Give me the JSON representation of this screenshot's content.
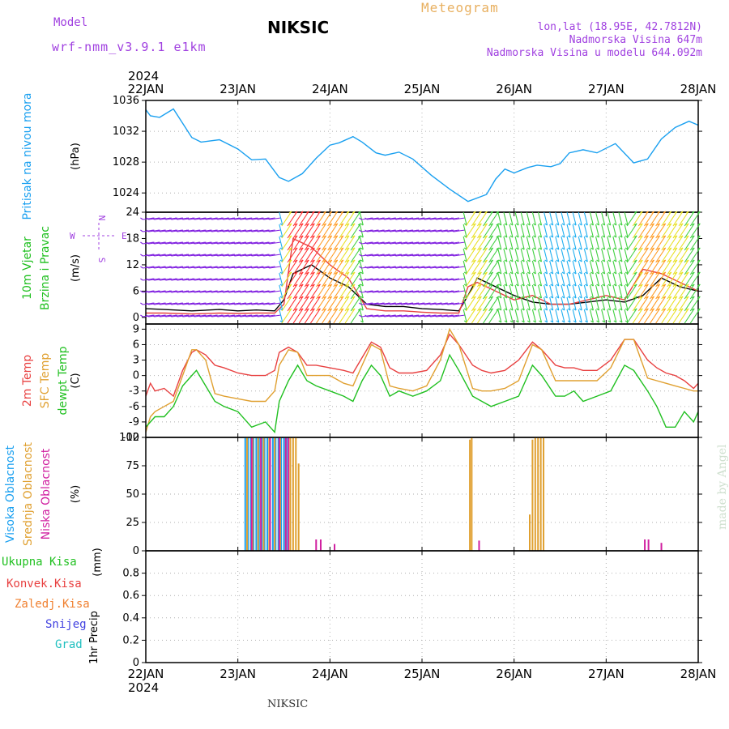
{
  "header": {
    "model_label": "Model",
    "model_name": "wrf-nmm_v3.9.1 e1km",
    "site_title": "NIKSIC",
    "meteogram_title": "Meteogram",
    "lonlat": "lon,lat (18.95E, 42.7812N)",
    "altitude": "Nadmorska Visina 647m",
    "altitude_model": "Nadmorska Visina u modelu 644.092m"
  },
  "footer": {
    "station": "NIKSIC",
    "watermark": "made by Angel"
  },
  "colors": {
    "pressure": "#1aa0f0",
    "temp2m": "#e84040",
    "sfc_temp": "#e0a030",
    "dewpoint": "#20c020",
    "high_cloud": "#1aa0f0",
    "mid_cloud": "#e0a030",
    "low_cloud": "#d020a0",
    "total_precip": "#20c020",
    "conv_precip": "#e84040",
    "frz_precip": "#f08030",
    "snow": "#4040e0",
    "hail": "#20c0c0",
    "wind_label": "#20c020",
    "compass": "#a040e0"
  },
  "chart_data": [
    {
      "type": "line",
      "panel": "pressure",
      "ylabel_lines": [
        "Pritisak na nivou mora"
      ],
      "unit": "(hPa)",
      "ylim": [
        1021.5,
        1036
      ],
      "yticks": [
        1024,
        1028,
        1032,
        1036
      ],
      "grid": true,
      "series": [
        {
          "name": "Pritisak na nivou mora",
          "x": [
            0,
            0.05,
            0.15,
            0.3,
            0.5,
            0.6,
            0.8,
            1.0,
            1.15,
            1.3,
            1.45,
            1.55,
            1.7,
            1.85,
            2.0,
            2.1,
            2.25,
            2.35,
            2.5,
            2.6,
            2.75,
            2.9,
            3.1,
            3.3,
            3.5,
            3.7,
            3.8,
            3.9,
            4.0,
            4.15,
            4.25,
            4.4,
            4.5,
            4.6,
            4.75,
            4.9,
            5.1,
            5.3,
            5.45,
            5.6,
            5.75,
            5.9,
            6.0
          ],
          "y": [
            1034.8,
            1034,
            1033.8,
            1034.9,
            1031.2,
            1030.6,
            1030.9,
            1029.7,
            1028.3,
            1028.4,
            1026,
            1025.5,
            1026.5,
            1028.5,
            1030.2,
            1030.5,
            1031.3,
            1030.6,
            1029.2,
            1028.9,
            1029.3,
            1028.4,
            1026.3,
            1024.5,
            1022.9,
            1023.8,
            1025.8,
            1027.1,
            1026.6,
            1027.3,
            1027.6,
            1027.4,
            1027.8,
            1029.2,
            1029.6,
            1029.2,
            1030.4,
            1027.9,
            1028.4,
            1031,
            1032.5,
            1033.3,
            1032.8
          ]
        }
      ]
    },
    {
      "type": "line",
      "panel": "wind",
      "ylabel_lines": [
        "10m Vjetar",
        "Brzina i Pravac"
      ],
      "unit": "(m/s)",
      "compass": {
        "n": "N",
        "s": "S",
        "w": "W",
        "e": "E"
      },
      "ylim": [
        -1.5,
        24
      ],
      "yticks": [
        0,
        6,
        12,
        18,
        24
      ],
      "grid": false,
      "series": [
        {
          "name": "wind speed",
          "x": [
            0,
            0.2,
            0.5,
            0.8,
            1.0,
            1.2,
            1.4,
            1.5,
            1.6,
            1.8,
            2.0,
            2.2,
            2.4,
            2.6,
            2.8,
            3.0,
            3.2,
            3.4,
            3.5,
            3.6,
            3.8,
            4.0,
            4.2,
            4.4,
            4.6,
            4.8,
            5.0,
            5.2,
            5.4,
            5.6,
            5.8,
            6.0
          ],
          "y": [
            2,
            1.8,
            1.5,
            1.8,
            1.5,
            1.7,
            1.5,
            4,
            10,
            12,
            9,
            7,
            3,
            2.5,
            2.5,
            2,
            1.8,
            1.5,
            5,
            9,
            7,
            5,
            3.5,
            3,
            3,
            3.5,
            4,
            3.5,
            5,
            9,
            7,
            6
          ]
        },
        {
          "name": "wind gust",
          "x": [
            0,
            0.2,
            0.5,
            0.8,
            1.0,
            1.2,
            1.4,
            1.5,
            1.6,
            1.8,
            2.0,
            2.2,
            2.4,
            2.6,
            2.8,
            3.0,
            3.2,
            3.4,
            3.5,
            3.6,
            3.8,
            4.0,
            4.2,
            4.4,
            4.6,
            4.8,
            5.0,
            5.2,
            5.4,
            5.6,
            5.8,
            6.0
          ],
          "y": [
            1,
            1,
            0.8,
            1,
            0.9,
            1,
            1,
            3,
            18,
            16,
            12,
            9,
            2,
            1.5,
            1.5,
            1.2,
            1,
            1,
            7,
            8,
            6,
            4,
            5,
            3,
            3,
            4,
            5,
            4,
            11,
            10,
            8,
            6
          ]
        }
      ]
    },
    {
      "type": "line",
      "panel": "temperature",
      "ylabel_lines": [
        "2m Temp",
        "SFC Temp",
        "dewpt Temp"
      ],
      "unit": "(C)",
      "ylim": [
        -12,
        10
      ],
      "yticks": [
        -12,
        -9,
        -6,
        -3,
        0,
        3,
        6,
        9
      ],
      "grid": true,
      "series": [
        {
          "name": "2m Temp",
          "x": [
            0,
            0.05,
            0.1,
            0.2,
            0.3,
            0.4,
            0.5,
            0.55,
            0.65,
            0.75,
            0.85,
            1.0,
            1.15,
            1.3,
            1.4,
            1.45,
            1.55,
            1.65,
            1.75,
            1.85,
            2.0,
            2.15,
            2.25,
            2.35,
            2.45,
            2.55,
            2.65,
            2.75,
            2.9,
            3.05,
            3.2,
            3.3,
            3.4,
            3.55,
            3.65,
            3.75,
            3.9,
            4.05,
            4.2,
            4.3,
            4.45,
            4.55,
            4.65,
            4.75,
            4.9,
            5.05,
            5.2,
            5.3,
            5.45,
            5.55,
            5.65,
            5.75,
            5.85,
            5.95,
            6.0
          ],
          "y": [
            -4,
            -1.5,
            -3,
            -2.5,
            -4,
            1,
            4.5,
            5,
            4,
            2,
            1.5,
            0.5,
            0,
            0,
            1,
            4.5,
            5.5,
            4.5,
            2,
            2,
            1.5,
            1,
            0.5,
            3.5,
            6.5,
            5.5,
            1.5,
            0.5,
            0.5,
            1,
            4,
            8,
            6,
            2,
            1,
            0.5,
            1,
            3,
            6.5,
            5,
            2,
            1.5,
            1.5,
            1,
            1,
            3,
            7,
            7,
            3,
            1.5,
            0.5,
            0,
            -1,
            -2.5,
            -1.5
          ]
        },
        {
          "name": "SFC Temp",
          "x": [
            0,
            0.05,
            0.1,
            0.2,
            0.3,
            0.4,
            0.5,
            0.55,
            0.65,
            0.75,
            0.85,
            1.0,
            1.15,
            1.3,
            1.4,
            1.45,
            1.55,
            1.65,
            1.75,
            1.85,
            2.0,
            2.15,
            2.25,
            2.35,
            2.45,
            2.55,
            2.65,
            2.75,
            2.9,
            3.05,
            3.2,
            3.3,
            3.4,
            3.55,
            3.65,
            3.75,
            3.9,
            4.05,
            4.2,
            4.3,
            4.45,
            4.55,
            4.65,
            4.75,
            4.9,
            5.05,
            5.2,
            5.3,
            5.45,
            5.55,
            5.65,
            5.75,
            5.85,
            5.95,
            6.0
          ],
          "y": [
            -11,
            -8,
            -7,
            -6,
            -5,
            0,
            5,
            5,
            3,
            -3.5,
            -4,
            -4.5,
            -5,
            -5,
            -3,
            2,
            5,
            4.5,
            0,
            0,
            0,
            -1.5,
            -2,
            2,
            6,
            5,
            -2,
            -2.5,
            -3,
            -2,
            3,
            9,
            6,
            -2.5,
            -3,
            -3,
            -2.5,
            -1,
            6,
            5,
            -1,
            -1,
            -1,
            -1,
            -1,
            1.5,
            7,
            7,
            -0.5,
            -1,
            -1.5,
            -2,
            -2.5,
            -3,
            -3
          ]
        },
        {
          "name": "dewpt Temp",
          "x": [
            0,
            0.05,
            0.1,
            0.2,
            0.3,
            0.4,
            0.5,
            0.55,
            0.65,
            0.75,
            0.85,
            1.0,
            1.15,
            1.3,
            1.4,
            1.45,
            1.55,
            1.65,
            1.75,
            1.85,
            2.0,
            2.15,
            2.25,
            2.35,
            2.45,
            2.55,
            2.65,
            2.75,
            2.9,
            3.05,
            3.2,
            3.3,
            3.4,
            3.55,
            3.65,
            3.75,
            3.9,
            4.05,
            4.2,
            4.3,
            4.45,
            4.55,
            4.65,
            4.75,
            4.9,
            5.05,
            5.2,
            5.3,
            5.45,
            5.55,
            5.65,
            5.75,
            5.85,
            5.95,
            6.0
          ],
          "y": [
            -10,
            -9,
            -8,
            -8,
            -6,
            -2,
            0,
            1,
            -2,
            -5,
            -6,
            -7,
            -10,
            -9,
            -11,
            -5,
            -1,
            2,
            -1,
            -2,
            -3,
            -4,
            -5,
            -1,
            2,
            0,
            -4,
            -3,
            -4,
            -3,
            -1,
            4,
            1,
            -4,
            -5,
            -6,
            -5,
            -4,
            2,
            0,
            -4,
            -4,
            -3,
            -5,
            -4,
            -3,
            2,
            1,
            -3,
            -6,
            -10,
            -10,
            -7,
            -9,
            -7
          ]
        }
      ]
    },
    {
      "type": "bar",
      "panel": "cloud",
      "ylabel_lines": [
        "Visoka Oblacnost",
        "Srednja Oblacnost",
        "Niska Oblacnost"
      ],
      "unit": "(%)",
      "ylim": [
        0,
        100
      ],
      "yticks": [
        0,
        25,
        50,
        75,
        100
      ],
      "grid": true,
      "series": [
        {
          "name": "Visoka Oblacnost",
          "x": [
            1.08,
            1.11,
            1.14,
            1.17,
            1.2,
            1.23,
            1.26,
            1.29,
            1.32,
            1.35,
            1.38,
            1.41,
            1.44,
            1.47,
            1.5,
            1.53
          ],
          "values": [
            100,
            100,
            100,
            100,
            100,
            100,
            100,
            100,
            100,
            100,
            100,
            100,
            100,
            100,
            100,
            100
          ]
        },
        {
          "name": "Srednja Oblacnost",
          "x": [
            1.1,
            1.16,
            1.22,
            1.28,
            1.34,
            1.4,
            1.46,
            1.52,
            1.57,
            1.6,
            1.63,
            1.66,
            3.52,
            3.54,
            4.17,
            4.2,
            4.23,
            4.26,
            4.29,
            4.32
          ],
          "values": [
            100,
            100,
            100,
            100,
            100,
            100,
            100,
            100,
            100,
            100,
            100,
            77,
            98,
            100,
            32,
            98,
            100,
            100,
            100,
            100
          ]
        },
        {
          "name": "Niska Oblacnost",
          "x": [
            1.15,
            1.25,
            1.35,
            1.45,
            1.52,
            1.55,
            1.85,
            1.9,
            2.05,
            3.62,
            5.42,
            5.46,
            5.6
          ],
          "values": [
            100,
            100,
            100,
            100,
            100,
            100,
            10,
            10,
            6,
            9,
            10,
            10,
            7
          ]
        }
      ]
    },
    {
      "type": "line",
      "panel": "precip",
      "ylabel_lines": [
        "1hr Precip"
      ],
      "unit": "(mm)",
      "legend": [
        "Ukupna Kisa",
        "Konvek.Kisa",
        "Zaledj.Kisa",
        "Snijeg",
        "Grad"
      ],
      "ylim": [
        0,
        1.0
      ],
      "yticks": [
        0,
        0.2,
        0.4,
        0.6,
        0.8
      ],
      "grid": true,
      "series": []
    }
  ],
  "time_axis": {
    "year": "2024",
    "labels": [
      "22JAN",
      "23JAN",
      "24JAN",
      "25JAN",
      "26JAN",
      "27JAN",
      "28JAN"
    ]
  }
}
